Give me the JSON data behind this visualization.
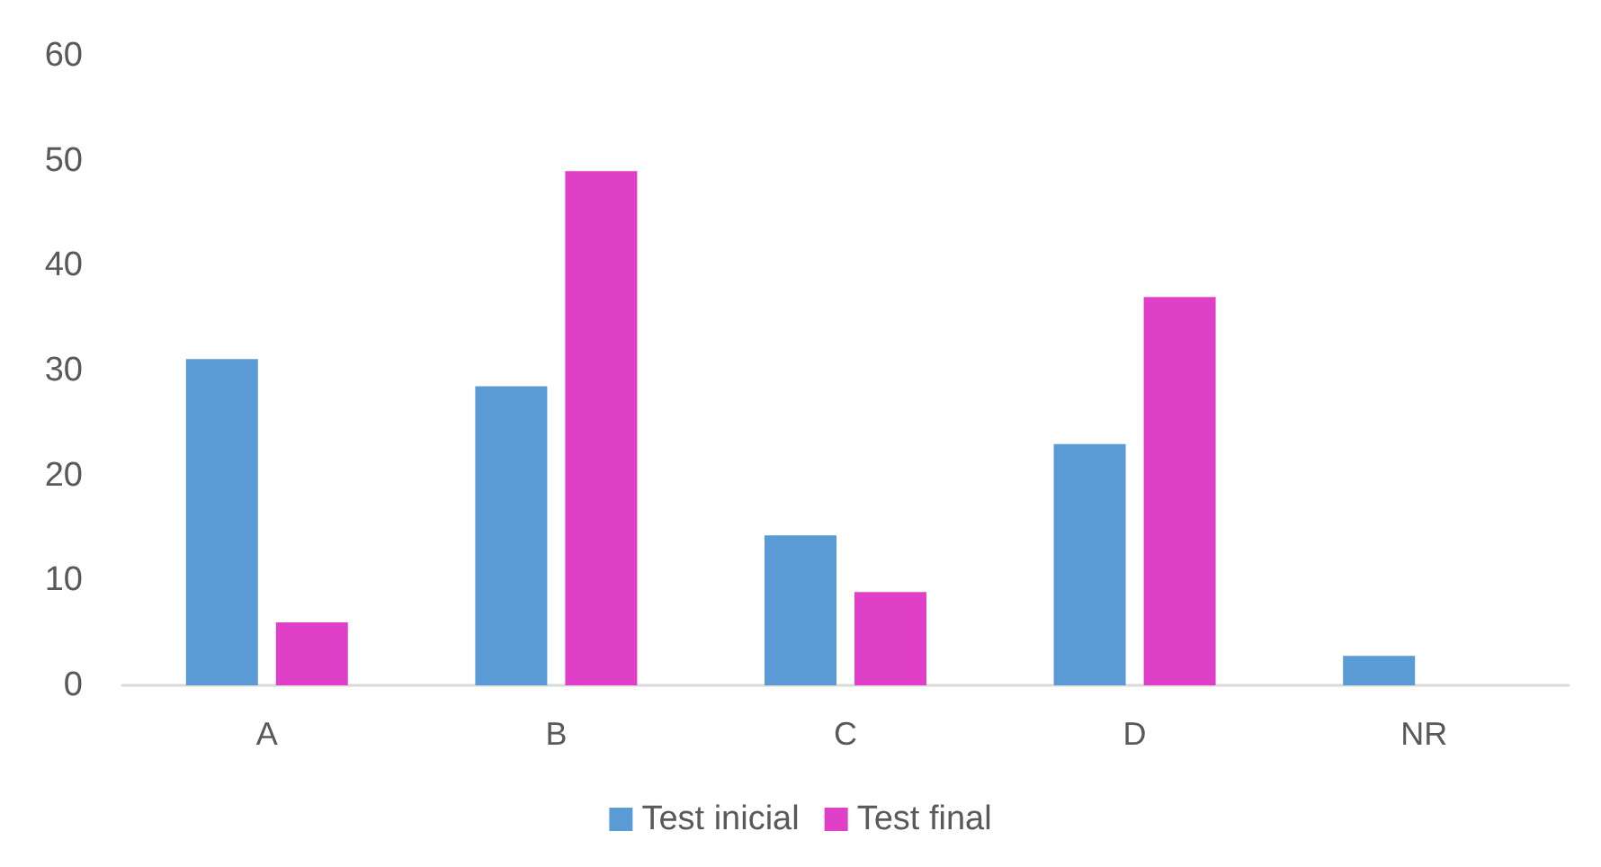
{
  "chart_data": {
    "type": "bar",
    "categories": [
      "A",
      "B",
      "C",
      "D",
      "NR"
    ],
    "series": [
      {
        "name": "Test inicial",
        "color": "#5b9bd5",
        "values": [
          31.1,
          28.5,
          14.3,
          23.0,
          2.8
        ]
      },
      {
        "name": "Test final",
        "color": "#e040c8",
        "values": [
          6,
          49,
          8.9,
          37,
          null
        ]
      }
    ],
    "ylim": [
      0,
      60
    ],
    "yticks": [
      0,
      10,
      20,
      30,
      40,
      50,
      60
    ],
    "grid": false,
    "legend": "bottom"
  }
}
